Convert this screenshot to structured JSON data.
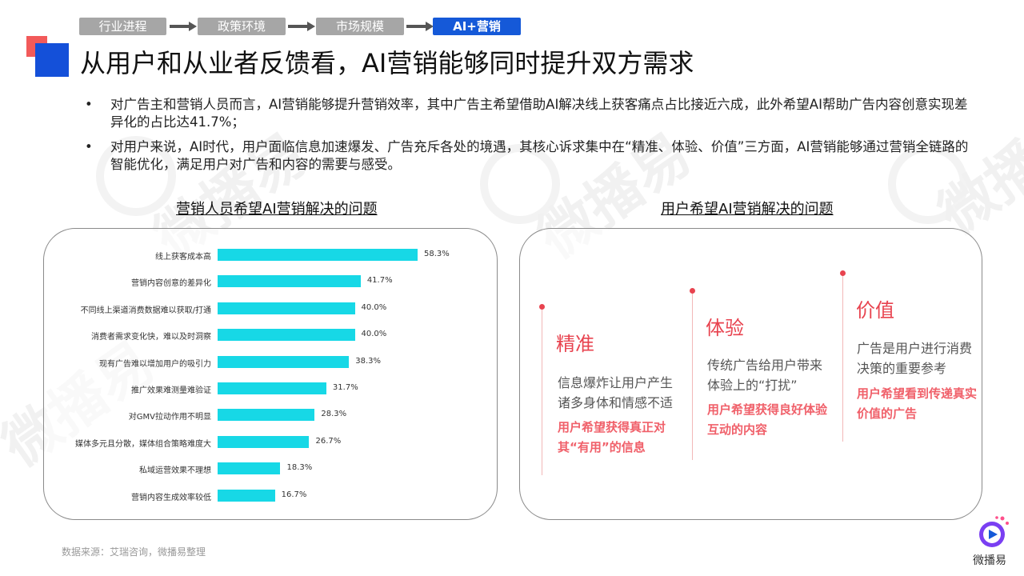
{
  "steps": [
    {
      "label": "行业进程",
      "state": "done"
    },
    {
      "label": "政策环境",
      "state": "done"
    },
    {
      "label": "市场规模",
      "state": "done"
    },
    {
      "label": "AI+营销",
      "state": "active"
    }
  ],
  "title": "从用户和从业者反馈看，AI营销能够同时提升双方需求",
  "bullets": [
    "对广告主和营销人员而言，AI营销能够提升营销效率，其中广告主希望借助AI解决线上获客痛点占比接近六成，此外希望AI帮助广告内容创意实现差异化的占比达41.7%；",
    "对用户来说，AI时代，用户面临信息加速爆发、广告充斥各处的境遇，其核心诉求集中在“精准、体验、价值”三方面，AI营销能够通过营销全链路的智能优化，满足用户对广告和内容的需要与感受。"
  ],
  "left_section_title": "营销人员希望AI营销解决的问题",
  "right_section_title": "用户希望AI营销解决的问题",
  "chart_data": {
    "type": "bar",
    "orientation": "horizontal",
    "title": "营销人员希望AI营销解决的问题",
    "categories": [
      "线上获客成本高",
      "营销内容创意的差异化",
      "不同线上渠道消费数据难以获取/打通",
      "消费者需求变化快，难以及时洞察",
      "现有广告难以增加用户的吸引力",
      "推广效果难测量难验证",
      "对GMV拉动作用不明显",
      "媒体多元且分散，媒体组合策略难度大",
      "私域运营效果不理想",
      "营销内容生成效率较低"
    ],
    "values": [
      58.3,
      41.7,
      40.0,
      40.0,
      38.3,
      31.7,
      28.3,
      26.7,
      18.3,
      16.7
    ],
    "value_labels": [
      "58.3%",
      "41.7%",
      "40.0%",
      "40.0%",
      "38.3%",
      "31.7%",
      "28.3%",
      "26.7%",
      "18.3%",
      "16.7%"
    ],
    "xlim": [
      0,
      100
    ],
    "color": "#17d8e6",
    "grid": false
  },
  "user_needs": [
    {
      "title": "精准",
      "desc": "信息爆炸让用户产生诸多身体和情感不适",
      "highlight": "用户希望获得真正对其“有用”的信息"
    },
    {
      "title": "体验",
      "desc": "传统广告给用户带来体验上的“打扰”",
      "highlight": "用户希望获得良好体验互动的内容"
    },
    {
      "title": "价值",
      "desc": "广告是用户进行消费决策的重要参考",
      "highlight": "用户希望看到传递真实价值的广告"
    }
  ],
  "source": "数据来源：艾瑞咨询，微播易整理",
  "brand": "微播易",
  "watermark": "微播易",
  "colors": {
    "accent": "#1559d8",
    "bar": "#17d8e6",
    "highlight_red": "#e8434f",
    "step_done": "#a6a6a6"
  }
}
